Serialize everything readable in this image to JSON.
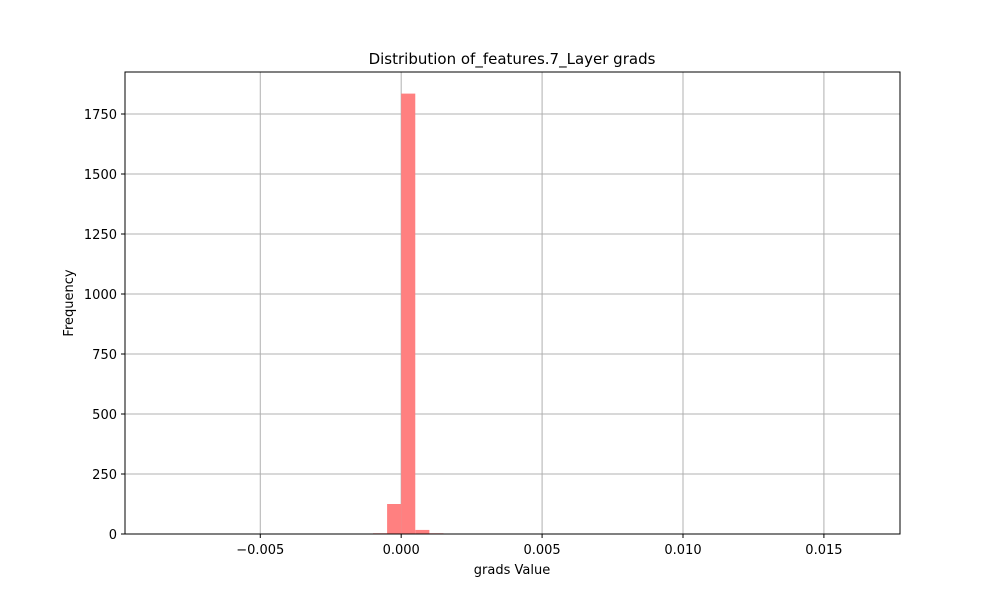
{
  "chart_data": {
    "type": "bar",
    "title": "Distribution of_features.7_Layer grads",
    "xlabel": "grads Value",
    "ylabel": "Frequency",
    "xlim": [
      -0.0098,
      0.0177
    ],
    "ylim": [
      0,
      1925
    ],
    "grid": true,
    "color": "#ff8080",
    "x_ticks": [
      {
        "value": -0.005,
        "label": "−0.005"
      },
      {
        "value": 0.0,
        "label": "0.000"
      },
      {
        "value": 0.005,
        "label": "0.005"
      },
      {
        "value": 0.01,
        "label": "0.010"
      },
      {
        "value": 0.015,
        "label": "0.015"
      }
    ],
    "y_ticks": [
      {
        "value": 0,
        "label": "0"
      },
      {
        "value": 250,
        "label": "250"
      },
      {
        "value": 500,
        "label": "500"
      },
      {
        "value": 750,
        "label": "750"
      },
      {
        "value": 1000,
        "label": "1000"
      },
      {
        "value": 1250,
        "label": "1250"
      },
      {
        "value": 1500,
        "label": "1500"
      },
      {
        "value": 1750,
        "label": "1750"
      }
    ],
    "bins": [
      {
        "x0": -0.001,
        "x1": -0.0005,
        "count": 3
      },
      {
        "x0": -0.0005,
        "x1": 0.0,
        "count": 125
      },
      {
        "x0": 0.0,
        "x1": 0.0005,
        "count": 1835
      },
      {
        "x0": 0.0005,
        "x1": 0.001,
        "count": 17
      },
      {
        "x0": 0.001,
        "x1": 0.0015,
        "count": 3
      }
    ]
  }
}
